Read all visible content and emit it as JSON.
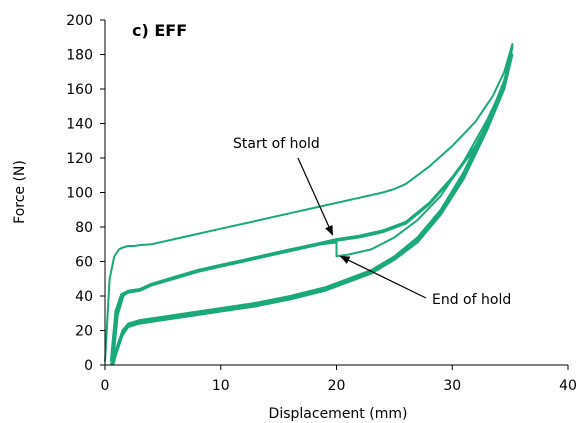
{
  "chart_data": {
    "type": "line",
    "title": "c) EFF",
    "xlabel": "Displacement (mm)",
    "ylabel": "Force (N)",
    "xlim": [
      0,
      40
    ],
    "ylim": [
      0,
      200
    ],
    "xticks": [
      0,
      10,
      20,
      30,
      40
    ],
    "yticks": [
      0,
      20,
      40,
      60,
      80,
      100,
      120,
      140,
      160,
      180,
      200
    ],
    "grid": false,
    "line_color": "#1aa97a",
    "series": [
      {
        "points": [
          [
            0,
            2
          ],
          [
            0.4,
            50
          ],
          [
            0.8,
            63
          ],
          [
            1.2,
            67
          ],
          [
            1.5,
            68
          ],
          [
            2.0,
            69
          ],
          [
            2.5,
            69
          ],
          [
            3,
            69.5
          ],
          [
            4,
            70
          ],
          [
            6,
            73
          ],
          [
            8,
            76
          ],
          [
            10,
            79
          ],
          [
            12,
            82
          ],
          [
            14,
            85
          ],
          [
            16,
            88
          ],
          [
            18,
            91
          ],
          [
            20,
            94
          ],
          [
            22,
            97
          ],
          [
            24,
            100
          ],
          [
            25,
            102
          ],
          [
            26,
            105
          ],
          [
            28,
            115
          ],
          [
            30,
            127
          ],
          [
            32,
            141
          ],
          [
            33.5,
            156
          ],
          [
            34.5,
            170
          ],
          [
            35.2,
            186
          ],
          [
            34.5,
            165
          ],
          [
            33,
            140
          ],
          [
            31,
            112
          ],
          [
            29,
            90
          ],
          [
            27,
            74
          ],
          [
            25,
            63
          ],
          [
            23,
            55
          ],
          [
            21,
            50
          ],
          [
            19,
            45
          ],
          [
            16,
            40
          ],
          [
            13,
            36
          ],
          [
            10,
            33
          ],
          [
            7,
            30
          ],
          [
            5,
            28
          ],
          [
            3,
            26
          ],
          [
            2,
            24
          ],
          [
            1.5,
            20
          ],
          [
            1,
            10
          ],
          [
            0.6,
            1
          ]
        ]
      },
      {
        "points": [
          [
            0.6,
            2
          ],
          [
            1,
            30
          ],
          [
            1.5,
            40
          ],
          [
            2,
            42
          ],
          [
            3,
            43
          ],
          [
            4,
            46
          ],
          [
            6,
            50
          ],
          [
            8,
            54
          ],
          [
            10,
            57
          ],
          [
            12,
            60
          ],
          [
            14,
            63
          ],
          [
            16,
            66
          ],
          [
            18,
            69
          ],
          [
            20,
            72
          ],
          [
            22,
            74
          ],
          [
            24,
            77
          ],
          [
            26,
            82
          ],
          [
            28,
            93
          ],
          [
            30,
            108
          ],
          [
            32,
            126
          ],
          [
            33.5,
            145
          ],
          [
            34.5,
            163
          ],
          [
            35.2,
            184
          ],
          [
            34.5,
            162
          ],
          [
            33,
            138
          ],
          [
            31,
            110
          ],
          [
            29,
            88
          ],
          [
            27,
            72
          ],
          [
            25,
            62
          ],
          [
            23,
            54
          ],
          [
            21,
            49
          ],
          [
            19,
            44
          ],
          [
            16,
            39
          ],
          [
            13,
            35
          ],
          [
            10,
            32
          ],
          [
            7,
            29
          ],
          [
            5,
            27
          ],
          [
            3,
            25
          ],
          [
            2,
            23
          ],
          [
            1.5,
            18
          ],
          [
            1,
            8
          ],
          [
            0.6,
            0
          ]
        ]
      },
      {
        "points": [
          [
            0.7,
            2
          ],
          [
            1.1,
            29
          ],
          [
            1.6,
            40
          ],
          [
            2,
            43
          ],
          [
            3,
            44
          ],
          [
            4,
            47
          ],
          [
            6,
            51
          ],
          [
            8,
            55
          ],
          [
            10,
            58
          ],
          [
            12,
            61
          ],
          [
            14,
            64
          ],
          [
            16,
            67
          ],
          [
            18,
            69.5
          ],
          [
            20,
            71
          ],
          [
            20,
            63
          ],
          [
            21,
            64
          ],
          [
            23,
            67
          ],
          [
            25,
            74
          ],
          [
            27,
            84
          ],
          [
            29,
            98
          ],
          [
            31,
            118
          ],
          [
            33,
            142
          ],
          [
            34.3,
            160
          ],
          [
            35.2,
            180
          ],
          [
            34.5,
            160
          ],
          [
            33,
            136
          ],
          [
            31,
            108
          ],
          [
            29,
            87
          ],
          [
            27,
            71
          ],
          [
            25,
            61
          ],
          [
            23,
            53
          ],
          [
            21,
            48
          ],
          [
            19,
            43
          ],
          [
            16,
            38
          ],
          [
            13,
            34
          ],
          [
            10,
            31
          ],
          [
            7,
            28
          ],
          [
            5,
            26
          ],
          [
            3,
            24
          ],
          [
            2,
            22
          ],
          [
            1.5,
            17
          ],
          [
            1,
            7
          ],
          [
            0.7,
            0
          ]
        ]
      },
      {
        "points": [
          [
            0.5,
            2
          ],
          [
            0.9,
            31
          ],
          [
            1.4,
            41
          ],
          [
            2,
            43
          ],
          [
            3,
            44
          ],
          [
            4,
            47
          ],
          [
            6,
            51
          ],
          [
            8,
            55
          ],
          [
            10,
            58
          ],
          [
            12,
            61
          ],
          [
            14,
            64
          ],
          [
            16,
            67
          ],
          [
            18,
            70
          ],
          [
            20,
            73
          ],
          [
            22,
            75
          ],
          [
            24,
            78
          ],
          [
            26,
            83
          ],
          [
            28,
            94
          ],
          [
            30,
            109
          ],
          [
            32,
            127
          ],
          [
            33.5,
            146
          ],
          [
            34.5,
            164
          ],
          [
            35.2,
            185
          ],
          [
            34.5,
            163
          ],
          [
            33,
            139
          ],
          [
            31,
            111
          ],
          [
            29,
            89
          ],
          [
            27,
            73
          ],
          [
            25,
            62.5
          ],
          [
            23,
            54.5
          ],
          [
            21,
            49.5
          ],
          [
            19,
            44.5
          ],
          [
            16,
            39.5
          ],
          [
            13,
            35.5
          ],
          [
            10,
            32.5
          ],
          [
            7,
            29.5
          ],
          [
            5,
            27.5
          ],
          [
            3,
            25.5
          ],
          [
            2,
            23.5
          ],
          [
            1.5,
            19
          ],
          [
            1,
            9
          ],
          [
            0.5,
            0
          ]
        ]
      }
    ],
    "annotations": [
      {
        "text": "Start of hold",
        "target": [
          20,
          72
        ]
      },
      {
        "text": "End of hold",
        "target": [
          20,
          63
        ]
      }
    ]
  }
}
